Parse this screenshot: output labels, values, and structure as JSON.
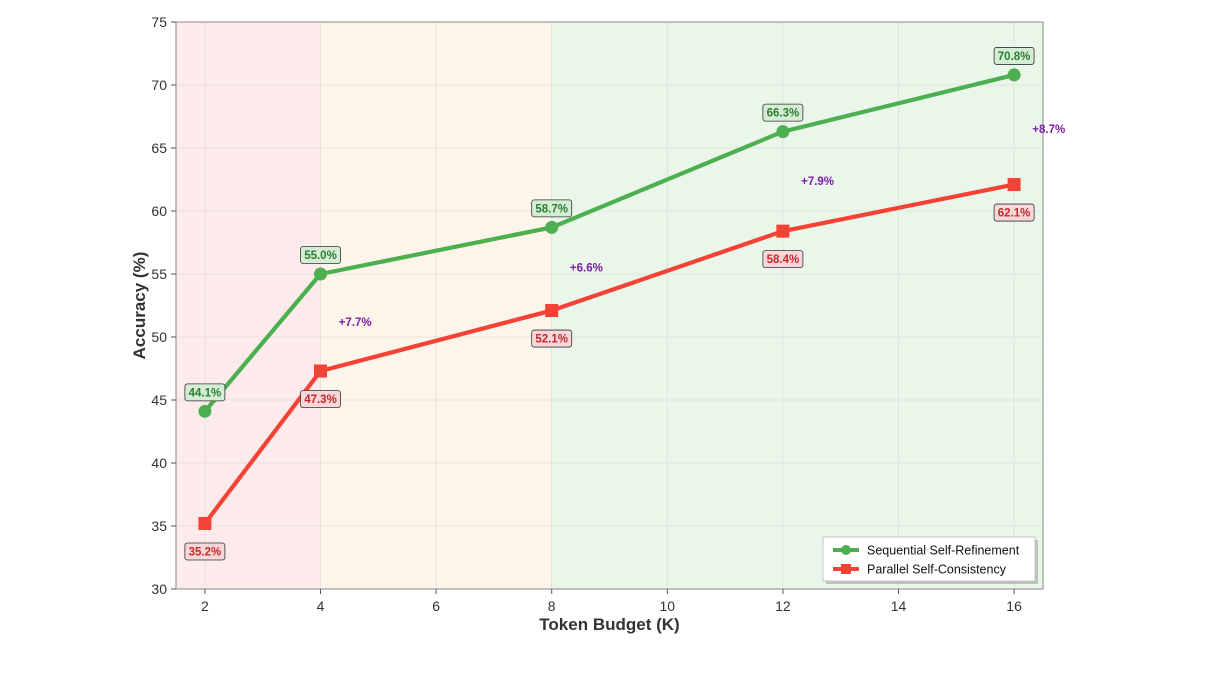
{
  "chart_data": {
    "type": "line",
    "title": "",
    "xlabel": "Token Budget (K)",
    "ylabel": "Accuracy (%)",
    "xlim": [
      1.5,
      16.5
    ],
    "ylim": [
      30,
      75
    ],
    "xticks": [
      2,
      4,
      6,
      8,
      10,
      12,
      14,
      16
    ],
    "yticks": [
      30,
      35,
      40,
      45,
      50,
      55,
      60,
      65,
      70,
      75
    ],
    "grid": true,
    "legend_position": "bottom-right",
    "background_bands": [
      {
        "from": 1.5,
        "to": 4,
        "color": "#fdebeb"
      },
      {
        "from": 4,
        "to": 8,
        "color": "#fdf4ea"
      },
      {
        "from": 8,
        "to": 16.5,
        "color": "#eaf6e9"
      }
    ],
    "series": [
      {
        "name": "Sequential Self-Refinement",
        "marker": "circle",
        "color": "#4caf50",
        "label_fill": "#d4edd4",
        "label_text_color": "#2e7d32",
        "label_position": "above",
        "x": [
          2,
          4,
          8,
          12,
          16
        ],
        "values": [
          44.1,
          55.0,
          58.7,
          66.3,
          70.8
        ],
        "labels": [
          "44.1%",
          "55.0%",
          "58.7%",
          "66.3%",
          "70.8%"
        ]
      },
      {
        "name": "Parallel Self-Consistency",
        "marker": "square",
        "color": "#f44336",
        "label_fill": "#f8d7da",
        "label_text_color": "#c62828",
        "label_position": "below",
        "x": [
          2,
          4,
          8,
          12,
          16
        ],
        "values": [
          35.2,
          47.3,
          52.1,
          58.4,
          62.1
        ],
        "labels": [
          "35.2%",
          "47.3%",
          "52.1%",
          "58.4%",
          "62.1%"
        ]
      }
    ],
    "annotations": [
      {
        "text": "+7.7%",
        "x": 4.6,
        "y": 51.2
      },
      {
        "text": "+6.6%",
        "x": 8.6,
        "y": 55.5
      },
      {
        "text": "+7.9%",
        "x": 12.6,
        "y": 62.4
      },
      {
        "text": "+8.7%",
        "x": 16.6,
        "y": 66.5
      }
    ]
  }
}
